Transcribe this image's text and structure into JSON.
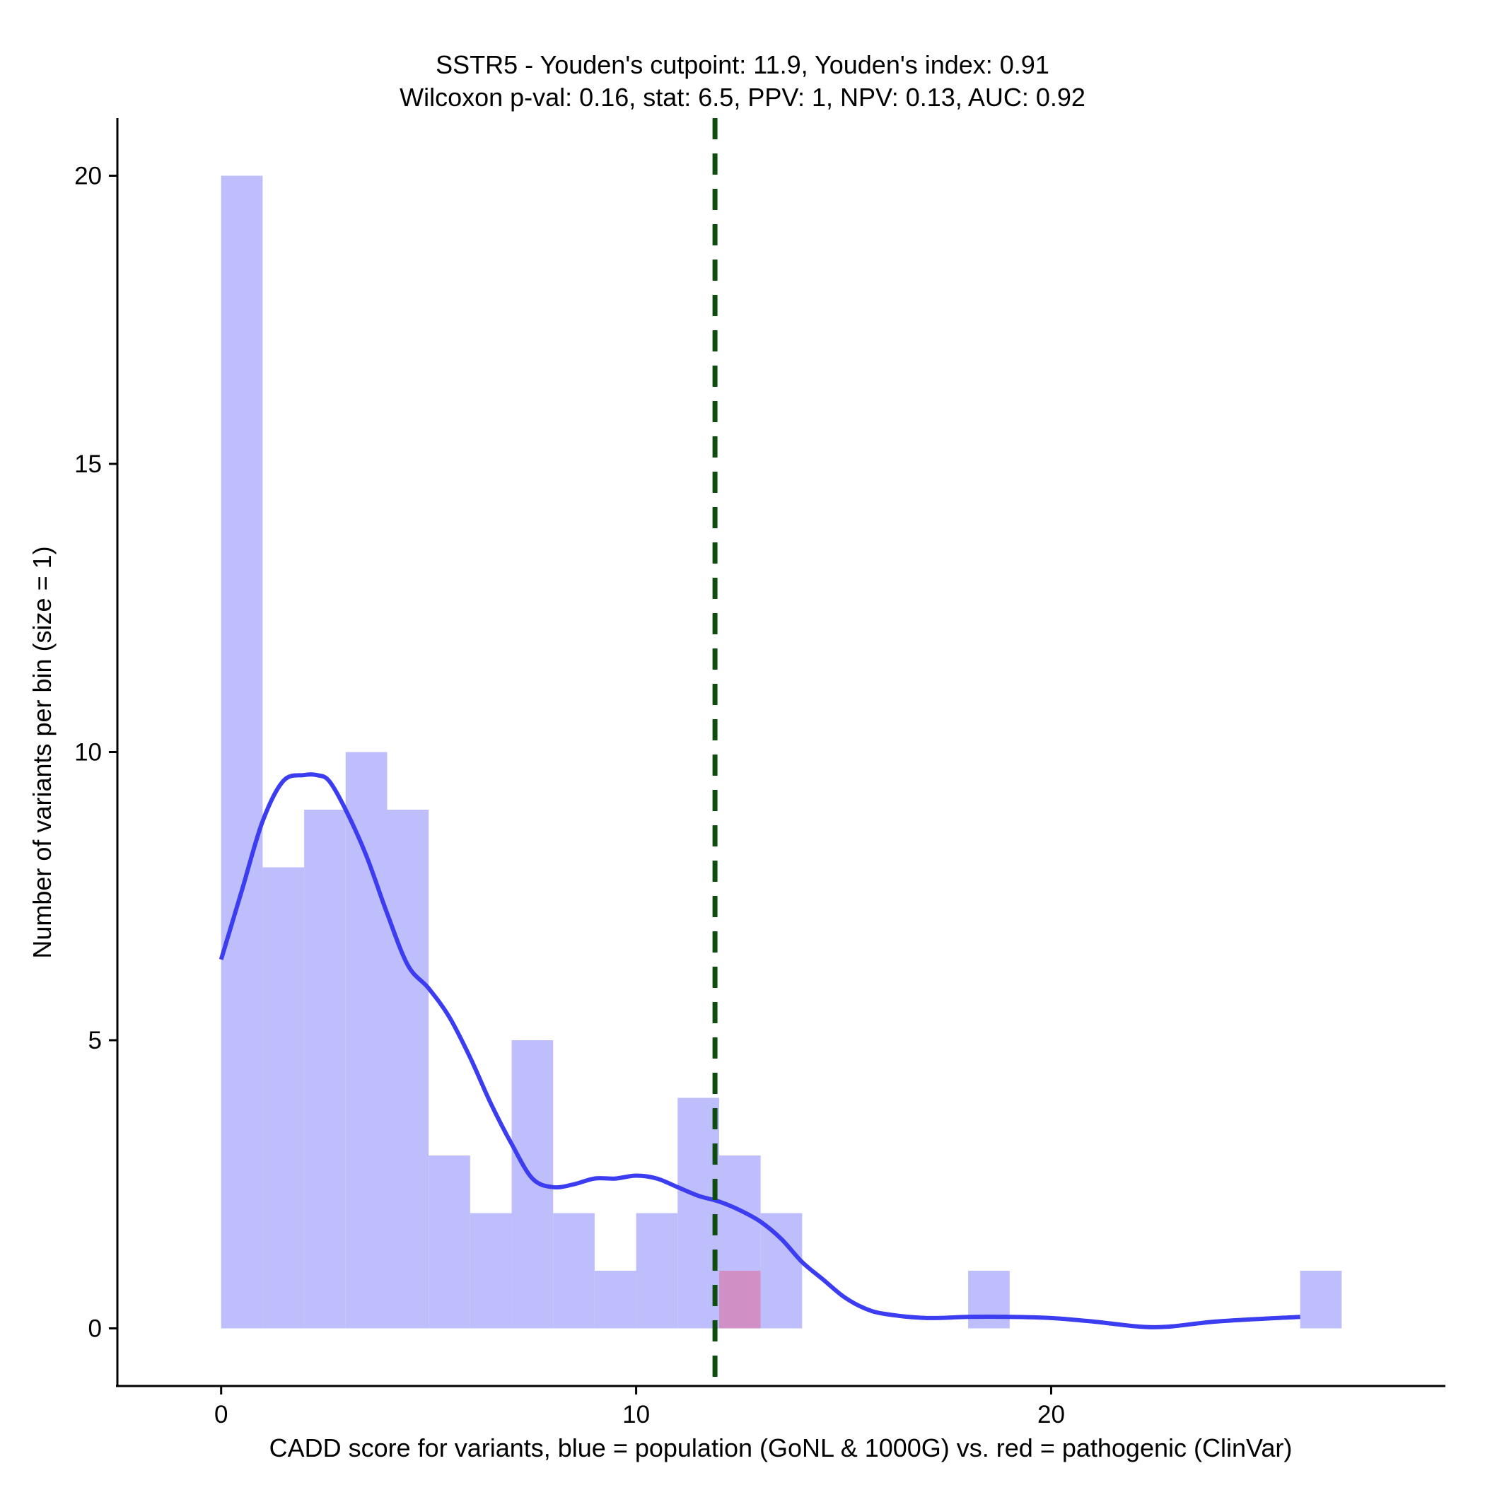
{
  "chart_data": {
    "type": "bar",
    "title": "SSTR5 - Youden's cutpoint: 11.9, Youden's index: 0.91",
    "subtitle": "Wilcoxon p-val: 0.16, stat: 6.5, PPV: 1, NPV: 0.13, AUC: 0.92",
    "xlabel": "CADD score for variants, blue = population (GoNL & 1000G) vs. red = pathogenic (ClinVar)",
    "ylabel": "Number of variants per bin (size = 1)",
    "xlim": [
      -2.5,
      29.5
    ],
    "ylim": [
      -1,
      21
    ],
    "xticks": [
      0,
      10,
      20
    ],
    "yticks": [
      0,
      5,
      10,
      15,
      20
    ],
    "grid": false,
    "bin_width": 1,
    "colors": {
      "population": "#bebefc",
      "pathogenic": "#d090c6",
      "density": "#3c3cf0",
      "cutpoint": "#0d4d0d"
    },
    "cutpoint": 11.9,
    "series": [
      {
        "name": "population",
        "bins": [
          {
            "x0": 0,
            "x1": 1,
            "count": 20
          },
          {
            "x0": 1,
            "x1": 2,
            "count": 8
          },
          {
            "x0": 2,
            "x1": 3,
            "count": 9
          },
          {
            "x0": 3,
            "x1": 4,
            "count": 10
          },
          {
            "x0": 4,
            "x1": 5,
            "count": 9
          },
          {
            "x0": 5,
            "x1": 6,
            "count": 3
          },
          {
            "x0": 6,
            "x1": 7,
            "count": 2
          },
          {
            "x0": 7,
            "x1": 8,
            "count": 5
          },
          {
            "x0": 8,
            "x1": 9,
            "count": 2
          },
          {
            "x0": 9,
            "x1": 10,
            "count": 1
          },
          {
            "x0": 10,
            "x1": 11,
            "count": 2
          },
          {
            "x0": 11,
            "x1": 12,
            "count": 4
          },
          {
            "x0": 12,
            "x1": 13,
            "count": 3
          },
          {
            "x0": 13,
            "x1": 14,
            "count": 2
          },
          {
            "x0": 18,
            "x1": 19,
            "count": 1
          },
          {
            "x0": 26,
            "x1": 27,
            "count": 1
          }
        ]
      },
      {
        "name": "pathogenic",
        "bins": [
          {
            "x0": 12,
            "x1": 13,
            "count": 1
          }
        ]
      }
    ],
    "density": {
      "name": "population density (scaled)",
      "x": [
        0,
        0.5,
        1,
        1.5,
        2,
        2.3,
        2.6,
        3,
        3.5,
        4,
        4.5,
        5,
        5.5,
        6,
        6.5,
        7,
        7.5,
        8,
        8.5,
        9,
        9.5,
        10,
        10.5,
        11,
        11.5,
        12,
        12.5,
        13,
        13.5,
        14,
        14.5,
        15,
        15.5,
        16,
        17,
        18,
        19,
        20,
        21,
        22.5,
        24,
        26
      ],
      "y": [
        6.4,
        7.6,
        8.8,
        9.5,
        9.6,
        9.6,
        9.5,
        9.0,
        8.2,
        7.2,
        6.3,
        5.9,
        5.4,
        4.7,
        3.9,
        3.2,
        2.6,
        2.45,
        2.5,
        2.6,
        2.6,
        2.65,
        2.6,
        2.45,
        2.3,
        2.2,
        2.05,
        1.85,
        1.55,
        1.15,
        0.85,
        0.55,
        0.35,
        0.25,
        0.18,
        0.2,
        0.2,
        0.18,
        0.12,
        0.02,
        0.12,
        0.2
      ]
    }
  }
}
